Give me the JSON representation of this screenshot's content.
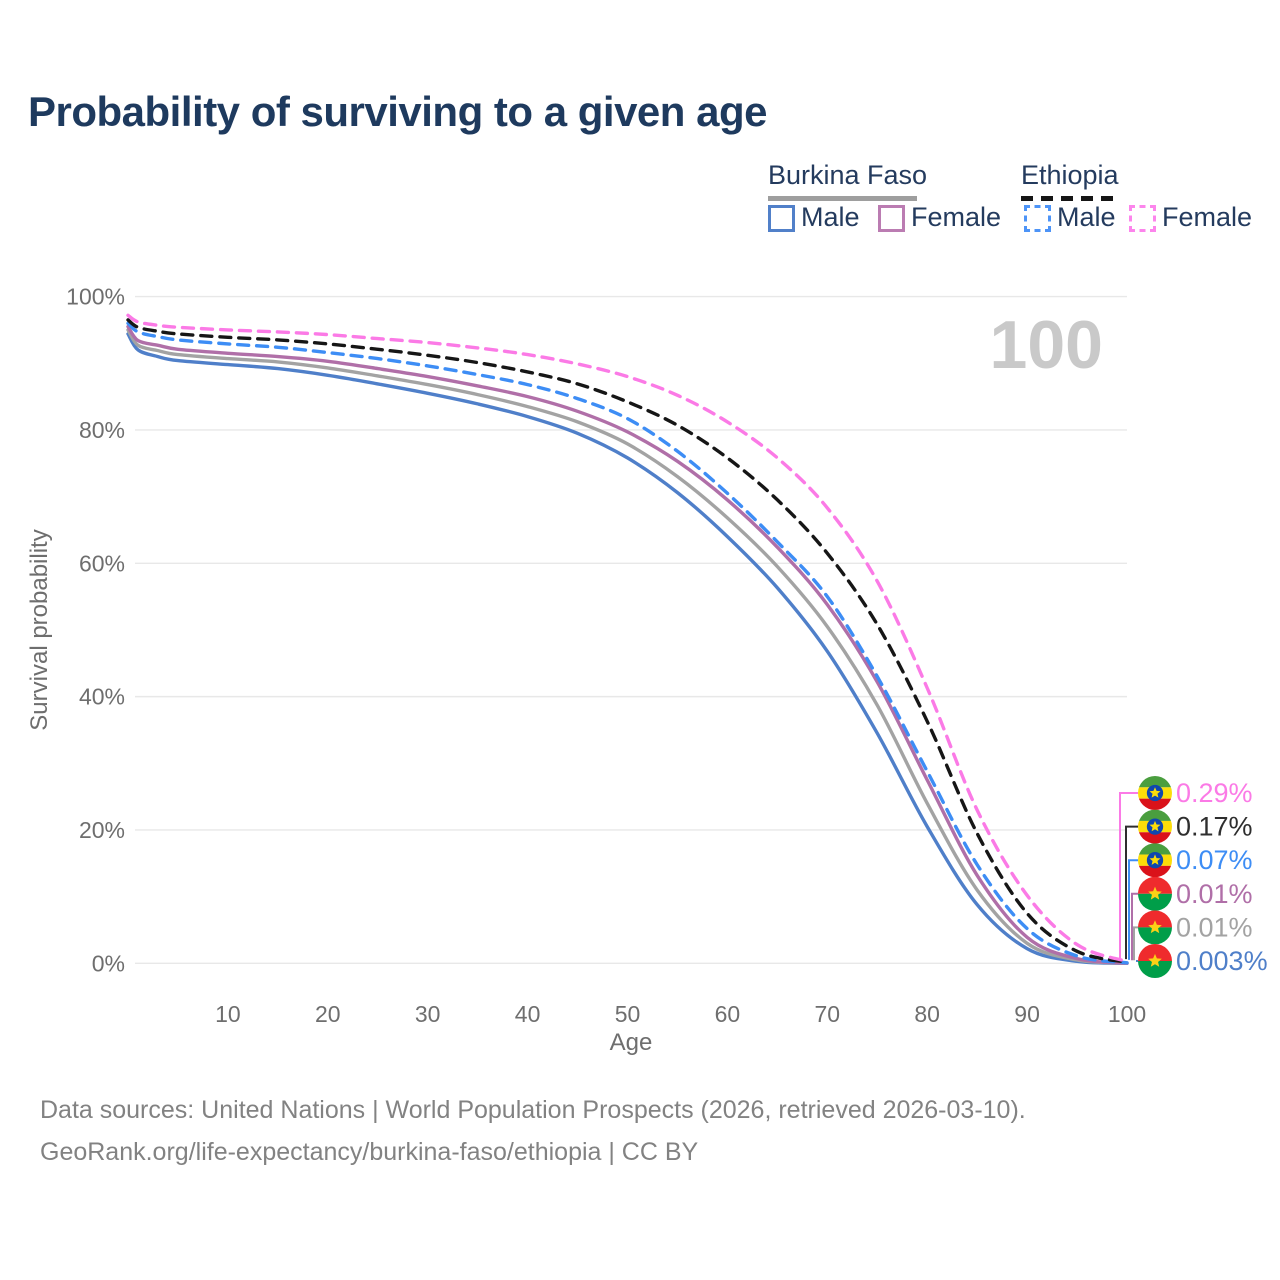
{
  "header": {
    "title": "Probability of surviving to a given age"
  },
  "legend": {
    "groups": [
      {
        "label": "Burkina Faso",
        "line_style": "solid",
        "line_color": "#9e9e9e",
        "items": [
          {
            "label": "Male",
            "color": "#5180c9"
          },
          {
            "label": "Female",
            "color": "#bb7cb2"
          }
        ]
      },
      {
        "label": "Ethiopia",
        "line_style": "dashed",
        "line_color": "#161616",
        "items": [
          {
            "label": "Male",
            "color": "#4d94f7"
          },
          {
            "label": "Female",
            "color": "#fc85ec"
          }
        ]
      }
    ]
  },
  "footer": {
    "line1": "Data sources: United Nations | World Population Prospects (2026, retrieved 2026-03-10).",
    "line2": "GeoRank.org/life-expectancy/burkina-faso/ethiopia | CC BY"
  },
  "chart_data": {
    "type": "line",
    "title": "Probability of surviving to a given age",
    "xlabel": "Age",
    "ylabel": "Survival probability",
    "xlim": [
      0,
      100
    ],
    "ylim": [
      0,
      100
    ],
    "x_ticks": [
      10,
      20,
      30,
      40,
      50,
      60,
      70,
      80,
      90,
      100
    ],
    "y_ticks": [
      0,
      20,
      40,
      60,
      80,
      100
    ],
    "y_tick_suffix": "%",
    "grid": "horizontal",
    "watermark": "100",
    "legend_position": "top-right",
    "series": [
      {
        "key": "bf-male",
        "name": "Burkina Faso Male",
        "country": "Burkina Faso",
        "sex": "Male",
        "color": "#4f7fc9",
        "dashed": false,
        "flag": "burkina-faso",
        "end_label": "0.003%",
        "points": [
          [
            0,
            94.4
          ],
          [
            1,
            92.0
          ],
          [
            3,
            91.0
          ],
          [
            5,
            90.4
          ],
          [
            10,
            89.8
          ],
          [
            15,
            89.2
          ],
          [
            20,
            88.2
          ],
          [
            25,
            86.9
          ],
          [
            30,
            85.5
          ],
          [
            35,
            83.9
          ],
          [
            40,
            82.0
          ],
          [
            45,
            79.5
          ],
          [
            50,
            75.8
          ],
          [
            55,
            70.6
          ],
          [
            60,
            64.0
          ],
          [
            65,
            56.3
          ],
          [
            70,
            46.8
          ],
          [
            75,
            34.5
          ],
          [
            80,
            20.5
          ],
          [
            85,
            8.8
          ],
          [
            90,
            2.2
          ],
          [
            95,
            0.3
          ],
          [
            100,
            0.003
          ]
        ]
      },
      {
        "key": "bf-both",
        "name": "Burkina Faso Both sexes",
        "country": "Burkina Faso",
        "sex": "Both",
        "color": "#a3a3a3",
        "dashed": false,
        "flag": "burkina-faso",
        "end_label": "0.01%",
        "points": [
          [
            0,
            95.0
          ],
          [
            1,
            92.7
          ],
          [
            3,
            91.9
          ],
          [
            5,
            91.3
          ],
          [
            10,
            90.7
          ],
          [
            15,
            90.2
          ],
          [
            20,
            89.3
          ],
          [
            25,
            88.1
          ],
          [
            30,
            86.8
          ],
          [
            35,
            85.3
          ],
          [
            40,
            83.5
          ],
          [
            45,
            81.2
          ],
          [
            50,
            77.9
          ],
          [
            55,
            73.0
          ],
          [
            60,
            66.8
          ],
          [
            65,
            59.5
          ],
          [
            70,
            50.5
          ],
          [
            75,
            38.7
          ],
          [
            80,
            24.0
          ],
          [
            85,
            11.0
          ],
          [
            90,
            3.0
          ],
          [
            95,
            0.5
          ],
          [
            100,
            0.01
          ]
        ]
      },
      {
        "key": "bf-female",
        "name": "Burkina Faso Female",
        "country": "Burkina Faso",
        "sex": "Female",
        "color": "#b06fa8",
        "dashed": false,
        "flag": "burkina-faso",
        "end_label": "0.01%",
        "points": [
          [
            0,
            95.5
          ],
          [
            1,
            93.4
          ],
          [
            3,
            92.7
          ],
          [
            5,
            92.1
          ],
          [
            10,
            91.5
          ],
          [
            15,
            91.0
          ],
          [
            20,
            90.3
          ],
          [
            25,
            89.2
          ],
          [
            30,
            88.0
          ],
          [
            35,
            86.6
          ],
          [
            40,
            85.0
          ],
          [
            45,
            82.8
          ],
          [
            50,
            79.7
          ],
          [
            55,
            75.3
          ],
          [
            60,
            69.5
          ],
          [
            65,
            62.4
          ],
          [
            70,
            53.8
          ],
          [
            75,
            42.2
          ],
          [
            80,
            27.5
          ],
          [
            85,
            13.2
          ],
          [
            90,
            3.9
          ],
          [
            95,
            0.7
          ],
          [
            100,
            0.01
          ]
        ]
      },
      {
        "key": "et-male",
        "name": "Ethiopia Male",
        "country": "Ethiopia",
        "sex": "Male",
        "color": "#3d8df5",
        "dashed": true,
        "flag": "ethiopia",
        "end_label": "0.07%",
        "points": [
          [
            0,
            96.0
          ],
          [
            1,
            94.7
          ],
          [
            3,
            94.0
          ],
          [
            5,
            93.5
          ],
          [
            10,
            92.9
          ],
          [
            15,
            92.4
          ],
          [
            20,
            91.6
          ],
          [
            25,
            90.7
          ],
          [
            30,
            89.6
          ],
          [
            35,
            88.3
          ],
          [
            40,
            86.8
          ],
          [
            45,
            84.7
          ],
          [
            50,
            81.7
          ],
          [
            55,
            76.8
          ],
          [
            60,
            70.5
          ],
          [
            65,
            63.2
          ],
          [
            70,
            55.0
          ],
          [
            75,
            43.0
          ],
          [
            80,
            28.8
          ],
          [
            85,
            14.8
          ],
          [
            90,
            5.2
          ],
          [
            95,
            1.1
          ],
          [
            100,
            0.07
          ]
        ]
      },
      {
        "key": "et-both",
        "name": "Ethiopia Both sexes",
        "country": "Ethiopia",
        "sex": "Both",
        "color": "#161616",
        "dashed": true,
        "flag": "ethiopia",
        "end_label": "0.17%",
        "points": [
          [
            0,
            96.5
          ],
          [
            1,
            95.4
          ],
          [
            3,
            94.8
          ],
          [
            5,
            94.4
          ],
          [
            10,
            93.9
          ],
          [
            15,
            93.5
          ],
          [
            20,
            92.9
          ],
          [
            25,
            92.1
          ],
          [
            30,
            91.2
          ],
          [
            35,
            90.1
          ],
          [
            40,
            88.7
          ],
          [
            45,
            86.9
          ],
          [
            50,
            84.2
          ],
          [
            55,
            80.7
          ],
          [
            60,
            75.8
          ],
          [
            65,
            69.5
          ],
          [
            70,
            61.5
          ],
          [
            75,
            50.8
          ],
          [
            80,
            36.3
          ],
          [
            85,
            19.5
          ],
          [
            90,
            7.5
          ],
          [
            95,
            1.8
          ],
          [
            100,
            0.17
          ]
        ]
      },
      {
        "key": "et-female",
        "name": "Ethiopia Female",
        "country": "Ethiopia",
        "sex": "Female",
        "color": "#fb7ae6",
        "dashed": true,
        "flag": "ethiopia",
        "end_label": "0.29%",
        "points": [
          [
            0,
            97.2
          ],
          [
            1,
            96.2
          ],
          [
            3,
            95.7
          ],
          [
            5,
            95.4
          ],
          [
            10,
            95.0
          ],
          [
            15,
            94.7
          ],
          [
            20,
            94.3
          ],
          [
            25,
            93.7
          ],
          [
            30,
            93.1
          ],
          [
            35,
            92.3
          ],
          [
            40,
            91.3
          ],
          [
            45,
            89.9
          ],
          [
            50,
            88.0
          ],
          [
            55,
            85.2
          ],
          [
            60,
            81.2
          ],
          [
            65,
            75.8
          ],
          [
            70,
            68.3
          ],
          [
            75,
            57.3
          ],
          [
            80,
            41.3
          ],
          [
            85,
            23.0
          ],
          [
            90,
            10.2
          ],
          [
            95,
            2.8
          ],
          [
            100,
            0.29
          ]
        ]
      }
    ],
    "end_labels_top_to_bottom": [
      "et-female",
      "et-both",
      "et-male",
      "bf-female",
      "bf-both",
      "bf-male"
    ],
    "end_label_colors": {
      "et-female": "#fb7ae6",
      "et-both": "#2e2e2e",
      "et-male": "#3d8df5",
      "bf-female": "#b06fa8",
      "bf-both": "#a3a3a3",
      "bf-male": "#4f7fc9"
    },
    "flag_colors": {
      "ethiopia": {
        "green": "#4a9e3f",
        "yellow": "#fcdd09",
        "red": "#da121a",
        "blue": "#0f47af",
        "star": "#fcdd09"
      },
      "burkina-faso": {
        "red": "#ef2b2d",
        "green": "#009e49",
        "star": "#fcd116"
      }
    }
  }
}
